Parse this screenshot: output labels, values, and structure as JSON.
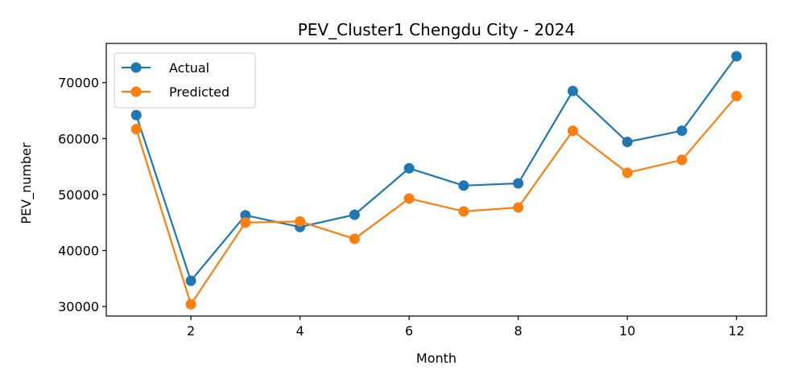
{
  "chart_data": {
    "type": "line",
    "title": "PEV_Cluster1 Chengdu City - 2024",
    "xlabel": "Month",
    "ylabel": "PEV_number",
    "x": [
      1,
      2,
      3,
      4,
      5,
      6,
      7,
      8,
      9,
      10,
      11,
      12
    ],
    "xlim": [
      0.45,
      12.55
    ],
    "ylim": [
      28300,
      77000
    ],
    "xticks": [
      2,
      4,
      6,
      8,
      10,
      12
    ],
    "yticks": [
      30000,
      40000,
      50000,
      60000,
      70000
    ],
    "grid": false,
    "legend_position": "top-left",
    "series": [
      {
        "name": "Actual",
        "color": "#1f77b4",
        "values": [
          64200,
          34600,
          46300,
          44200,
          46400,
          54700,
          51600,
          52000,
          68500,
          59400,
          61400,
          74700
        ]
      },
      {
        "name": "Predicted",
        "color": "#ff7f0e",
        "values": [
          61700,
          30400,
          45000,
          45200,
          42100,
          49300,
          47000,
          47700,
          61400,
          53900,
          56200,
          67600
        ]
      }
    ]
  }
}
